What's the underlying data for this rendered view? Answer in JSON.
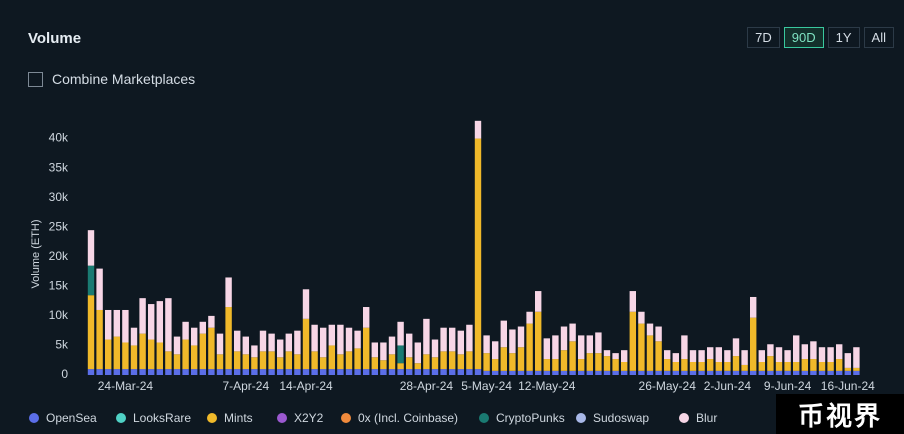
{
  "title": "Volume",
  "ranges": [
    "7D",
    "90D",
    "1Y",
    "All"
  ],
  "active_range": "90D",
  "combine_label": "Combine Marketplaces",
  "watermark": "币视界",
  "chart_data": {
    "type": "stacked_bar",
    "y_label": "Volume (ETH)",
    "categories": [
      null,
      null,
      null,
      null,
      "24-Mar-24",
      null,
      null,
      null,
      null,
      null,
      null,
      null,
      null,
      null,
      null,
      null,
      null,
      null,
      "7-Apr-24",
      null,
      null,
      null,
      null,
      null,
      null,
      "14-Apr-24",
      null,
      null,
      null,
      null,
      null,
      null,
      null,
      null,
      null,
      null,
      null,
      null,
      null,
      "28-Apr-24",
      null,
      null,
      null,
      null,
      null,
      null,
      "5-May-24",
      null,
      null,
      null,
      null,
      null,
      null,
      "12-May-24",
      null,
      null,
      null,
      null,
      null,
      null,
      null,
      null,
      null,
      null,
      null,
      null,
      null,
      "26-May-24",
      null,
      null,
      null,
      null,
      null,
      null,
      "2-Jun-24",
      null,
      null,
      null,
      null,
      null,
      null,
      "9-Jun-24",
      null,
      null,
      null,
      null,
      null,
      null,
      "16-Jun-24",
      null
    ],
    "ylim": [
      0,
      45000
    ],
    "yticks": [
      0,
      {
        "value": 5000,
        "label": "5k"
      },
      {
        "value": 10000,
        "label": "10k"
      },
      {
        "value": 15000,
        "label": "15k"
      },
      {
        "value": 20000,
        "label": "20k"
      },
      {
        "value": 25000,
        "label": "25k"
      },
      {
        "value": 30000,
        "label": "30k"
      },
      {
        "value": 35000,
        "label": "35k"
      },
      {
        "value": 40000,
        "label": "40k"
      }
    ],
    "grid": false,
    "series": [
      {
        "name": "OpenSea",
        "color": "#5b6ee8",
        "values": [
          1000,
          1000,
          1000,
          1000,
          1000,
          1000,
          1000,
          1000,
          1000,
          1000,
          1000,
          1000,
          1000,
          1000,
          1000,
          1000,
          1000,
          1000,
          1000,
          1000,
          1000,
          1000,
          1000,
          1000,
          1000,
          1000,
          1000,
          1000,
          1000,
          1000,
          1000,
          1000,
          1000,
          1000,
          1000,
          1000,
          1000,
          1000,
          1000,
          1000,
          1000,
          1000,
          1000,
          1000,
          1000,
          1000,
          700,
          700,
          700,
          700,
          700,
          700,
          700,
          700,
          700,
          700,
          700,
          700,
          700,
          700,
          700,
          700,
          700,
          700,
          700,
          700,
          700,
          700,
          700,
          700,
          700,
          700,
          700,
          700,
          700,
          700,
          700,
          700,
          700,
          700,
          700,
          700,
          700,
          700,
          700,
          700,
          700,
          700,
          700,
          700
        ]
      },
      {
        "name": "LooksRare",
        "color": "#4fd1c5",
        "values": [
          0,
          0,
          0,
          0,
          0,
          0,
          0,
          0,
          0,
          0,
          0,
          0,
          0,
          0,
          0,
          0,
          0,
          0,
          0,
          0,
          0,
          0,
          0,
          0,
          0,
          0,
          0,
          0,
          0,
          0,
          0,
          0,
          0,
          0,
          0,
          0,
          0,
          0,
          0,
          0,
          0,
          0,
          0,
          0,
          0,
          0,
          0,
          0,
          0,
          0,
          0,
          0,
          0,
          0,
          0,
          0,
          0,
          0,
          0,
          0,
          0,
          0,
          0,
          0,
          0,
          0,
          0,
          0,
          0,
          0,
          0,
          0,
          0,
          0,
          0,
          0,
          0,
          0,
          0,
          0,
          0,
          0,
          0,
          0,
          0,
          0,
          0,
          0,
          0,
          0
        ]
      },
      {
        "name": "Mints",
        "color": "#f0b92a",
        "values": [
          12500,
          10000,
          5000,
          5500,
          4500,
          4000,
          6000,
          5000,
          4500,
          3000,
          2500,
          5000,
          4000,
          6000,
          7000,
          2500,
          10500,
          3000,
          2500,
          2000,
          3000,
          3000,
          2000,
          3000,
          2500,
          8500,
          3000,
          2000,
          4000,
          2500,
          3000,
          3500,
          7000,
          2000,
          1500,
          2500,
          1000,
          2000,
          1000,
          2500,
          2000,
          3000,
          3000,
          2500,
          3000,
          39000,
          3000,
          2000,
          4000,
          3000,
          4000,
          8000,
          10000,
          2000,
          2000,
          3500,
          5000,
          2000,
          3000,
          3000,
          2500,
          2000,
          1500,
          10000,
          8000,
          6000,
          5000,
          2000,
          1500,
          2000,
          1500,
          1500,
          2000,
          1500,
          1500,
          2500,
          1000,
          9000,
          1500,
          2500,
          1500,
          1500,
          1500,
          2000,
          2000,
          1500,
          1500,
          2000,
          500,
          500
        ]
      },
      {
        "name": "X2Y2",
        "color": "#9b59d0",
        "values": [
          0,
          0,
          0,
          0,
          0,
          0,
          0,
          0,
          0,
          0,
          0,
          0,
          0,
          0,
          0,
          0,
          0,
          0,
          0,
          0,
          0,
          0,
          0,
          0,
          0,
          0,
          0,
          0,
          0,
          0,
          0,
          0,
          0,
          0,
          0,
          0,
          0,
          0,
          0,
          0,
          0,
          0,
          0,
          0,
          0,
          0,
          0,
          0,
          0,
          0,
          0,
          0,
          0,
          0,
          0,
          0,
          0,
          0,
          0,
          0,
          0,
          0,
          0,
          0,
          0,
          0,
          0,
          0,
          0,
          0,
          0,
          0,
          0,
          0,
          0,
          0,
          0,
          0,
          0,
          0,
          0,
          0,
          0,
          0,
          0,
          0,
          0,
          0,
          0,
          0
        ]
      },
      {
        "name": "0x (Incl. Coinbase)",
        "color": "#f08a3c",
        "values": [
          0,
          0,
          0,
          0,
          0,
          0,
          0,
          0,
          0,
          0,
          0,
          0,
          0,
          0,
          0,
          0,
          0,
          0,
          0,
          0,
          0,
          0,
          0,
          0,
          0,
          0,
          0,
          0,
          0,
          0,
          0,
          0,
          0,
          0,
          0,
          0,
          0,
          0,
          0,
          0,
          0,
          0,
          0,
          0,
          0,
          0,
          0,
          0,
          0,
          0,
          0,
          0,
          0,
          0,
          0,
          0,
          0,
          0,
          0,
          0,
          0,
          0,
          0,
          0,
          0,
          0,
          0,
          0,
          0,
          0,
          0,
          0,
          0,
          0,
          0,
          0,
          0,
          0,
          0,
          0,
          0,
          0,
          0,
          0,
          0,
          0,
          0,
          0,
          0,
          0
        ]
      },
      {
        "name": "CryptoPunks",
        "color": "#1a7a72",
        "values": [
          5000,
          0,
          0,
          0,
          0,
          0,
          0,
          0,
          0,
          0,
          0,
          0,
          0,
          0,
          0,
          0,
          0,
          0,
          0,
          0,
          0,
          0,
          0,
          0,
          0,
          0,
          0,
          0,
          0,
          0,
          0,
          0,
          0,
          0,
          0,
          0,
          3000,
          0,
          0,
          0,
          0,
          0,
          0,
          0,
          0,
          0,
          0,
          0,
          0,
          0,
          0,
          0,
          0,
          0,
          0,
          0,
          0,
          0,
          0,
          0,
          0,
          0,
          0,
          0,
          0,
          0,
          0,
          0,
          0,
          0,
          0,
          0,
          0,
          0,
          0,
          0,
          0,
          0,
          0,
          0,
          0,
          0,
          0,
          0,
          0,
          0,
          0,
          0,
          0,
          0
        ]
      },
      {
        "name": "Sudoswap",
        "color": "#a8b8e8",
        "values": [
          0,
          0,
          0,
          0,
          0,
          0,
          0,
          0,
          0,
          0,
          0,
          0,
          0,
          0,
          0,
          0,
          0,
          0,
          0,
          0,
          0,
          0,
          0,
          0,
          0,
          0,
          0,
          0,
          0,
          0,
          0,
          0,
          0,
          0,
          0,
          0,
          0,
          0,
          0,
          0,
          0,
          0,
          0,
          0,
          0,
          0,
          0,
          0,
          0,
          0,
          0,
          0,
          0,
          0,
          0,
          0,
          0,
          0,
          0,
          0,
          0,
          0,
          0,
          0,
          0,
          0,
          0,
          0,
          0,
          0,
          0,
          0,
          0,
          0,
          0,
          0,
          0,
          0,
          0,
          0,
          0,
          0,
          0,
          0,
          0,
          0,
          0,
          0,
          0,
          0
        ]
      },
      {
        "name": "Blur",
        "color": "#f7d6e6",
        "values": [
          6000,
          7000,
          5000,
          4500,
          5500,
          3000,
          6000,
          6000,
          7000,
          9000,
          3000,
          3000,
          3000,
          2000,
          2000,
          3500,
          5000,
          3500,
          3000,
          2000,
          3500,
          3000,
          3000,
          3000,
          4000,
          5000,
          4500,
          5000,
          3500,
          5000,
          4000,
          3000,
          3500,
          2500,
          3000,
          3000,
          4000,
          4000,
          3500,
          6000,
          3000,
          4000,
          4000,
          4000,
          4500,
          3000,
          3000,
          3000,
          4500,
          4000,
          3500,
          2000,
          3500,
          3500,
          4000,
          4000,
          3000,
          4000,
          3000,
          3500,
          1000,
          1000,
          2000,
          3500,
          2000,
          2000,
          2500,
          1500,
          1500,
          4000,
          2000,
          2000,
          2000,
          2500,
          2000,
          3000,
          2500,
          3500,
          2000,
          2000,
          2500,
          2000,
          4500,
          2500,
          3000,
          2500,
          2500,
          2500,
          2500,
          3500
        ]
      }
    ]
  }
}
